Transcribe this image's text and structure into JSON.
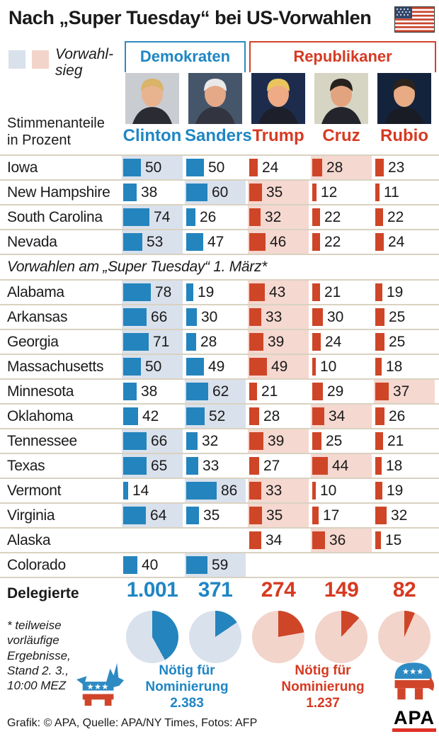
{
  "header": {
    "title": "Nach „Super Tuesday“ bei US-Vorwahlen"
  },
  "legend": {
    "label": "Vorwahl-\nsieg"
  },
  "parties": {
    "dem_label": "Demokraten",
    "rep_label": "Republikaner"
  },
  "axis_note": "Stimmenanteile\nin Prozent",
  "section_header": "Vorwahlen am „Super Tuesday“ 1. März*",
  "delegates_label": "Delegierte",
  "footnote": "* teilweise\nvorläufige\nErgebnisse,\nStand 2. 3.,\n10:00 MEZ",
  "footer": "Grafik: © APA, Quelle: APA/NY Times, Fotos: AFP",
  "apa_label": "APA",
  "colors": {
    "dem": "#2484bd",
    "rep": "#ce4627",
    "dem_light": "#d9e1ec",
    "rep_light": "#f2d4cb",
    "dem_text": "#1f86c4",
    "rep_text": "#d63a22",
    "separator": "#d9d2c1"
  },
  "candidates": [
    {
      "name": "Clinton",
      "party": "dem",
      "photo": {
        "bg": "#c9ccd1",
        "hair": "#d9b469",
        "skin": "#e8b490",
        "suit": "#2b2b33"
      }
    },
    {
      "name": "Sanders",
      "party": "dem",
      "photo": {
        "bg": "#46566a",
        "hair": "#e9e9e9",
        "skin": "#e5a987",
        "suit": "#32353f"
      }
    },
    {
      "name": "Trump",
      "party": "rep",
      "photo": {
        "bg": "#1d2c4d",
        "hair": "#eac55e",
        "skin": "#eeab85",
        "suit": "#1d1f2a"
      }
    },
    {
      "name": "Cruz",
      "party": "rep",
      "photo": {
        "bg": "#d6d5c4",
        "hair": "#26211e",
        "skin": "#e2a47f",
        "suit": "#23242c"
      }
    },
    {
      "name": "Rubio",
      "party": "rep",
      "photo": {
        "bg": "#14233c",
        "hair": "#2c231c",
        "skin": "#e8ab84",
        "suit": "#1a1c25"
      }
    }
  ],
  "chart_data": [
    {
      "type": "bar",
      "title": "Stimmenanteile in Prozent",
      "unit": "percent",
      "categories": [
        "Iowa",
        "New Hampshire",
        "South Carolina",
        "Nevada",
        "Alabama",
        "Arkansas",
        "Georgia",
        "Massachusetts",
        "Minnesota",
        "Oklahoma",
        "Tennessee",
        "Texas",
        "Vermont",
        "Virginia",
        "Alaska",
        "Colorado"
      ],
      "super_tuesday_from": "Alabama",
      "series": [
        {
          "name": "Clinton",
          "party": "dem",
          "values": [
            50,
            38,
            74,
            53,
            78,
            66,
            71,
            50,
            38,
            42,
            66,
            65,
            14,
            64,
            null,
            40
          ]
        },
        {
          "name": "Sanders",
          "party": "dem",
          "values": [
            50,
            60,
            26,
            47,
            19,
            30,
            28,
            49,
            62,
            52,
            32,
            33,
            86,
            35,
            null,
            59
          ]
        },
        {
          "name": "Trump",
          "party": "rep",
          "values": [
            24,
            35,
            32,
            46,
            43,
            33,
            39,
            49,
            21,
            28,
            39,
            27,
            33,
            35,
            34,
            null
          ]
        },
        {
          "name": "Cruz",
          "party": "rep",
          "values": [
            28,
            12,
            22,
            22,
            21,
            30,
            24,
            10,
            29,
            34,
            25,
            44,
            10,
            17,
            36,
            null
          ]
        },
        {
          "name": "Rubio",
          "party": "rep",
          "values": [
            23,
            11,
            22,
            24,
            19,
            25,
            25,
            18,
            37,
            26,
            21,
            18,
            19,
            32,
            15,
            null
          ]
        }
      ],
      "winners": {
        "dem": [
          "Clinton",
          "Sanders",
          "Clinton",
          "Clinton",
          "Clinton",
          "Clinton",
          "Clinton",
          "Clinton",
          "Sanders",
          "Sanders",
          "Clinton",
          "Clinton",
          "Sanders",
          "Clinton",
          null,
          "Sanders"
        ],
        "rep": [
          "Cruz",
          "Trump",
          "Trump",
          "Trump",
          "Trump",
          "Trump",
          "Trump",
          "Trump",
          "Rubio",
          "Cruz",
          "Trump",
          "Cruz",
          "Trump",
          "Trump",
          "Cruz",
          null
        ]
      }
    },
    {
      "type": "pie",
      "title": "Delegierte",
      "pies": [
        {
          "name": "Clinton",
          "party": "dem",
          "value": 1001,
          "display": "1.001",
          "needed": 2383
        },
        {
          "name": "Sanders",
          "party": "dem",
          "value": 371,
          "display": "371",
          "needed": 2383
        },
        {
          "name": "Trump",
          "party": "rep",
          "value": 274,
          "display": "274",
          "needed": 1237
        },
        {
          "name": "Cruz",
          "party": "rep",
          "value": 149,
          "display": "149",
          "needed": 1237
        },
        {
          "name": "Rubio",
          "party": "rep",
          "value": 82,
          "display": "82",
          "needed": 1237
        }
      ],
      "needed_labels": [
        {
          "party": "dem",
          "text": "Nötig für\nNominierung\n2.383"
        },
        {
          "party": "rep",
          "text": "Nötig für\nNominierung\n1.237"
        }
      ]
    }
  ]
}
